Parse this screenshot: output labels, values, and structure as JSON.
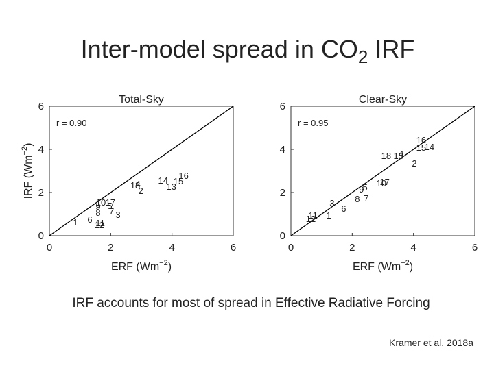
{
  "title": {
    "text": "Inter-model spread in CO",
    "subscript": "2",
    "suffix": " IRF"
  },
  "chart_data": [
    {
      "type": "scatter",
      "title": "Total-Sky",
      "annotation": "r = 0.90",
      "xlabel": {
        "text": "ERF (Wm",
        "superscript": "−2",
        "suffix": ")"
      },
      "ylabel": {
        "text": "IRF (Wm",
        "superscript": "−2",
        "suffix": ")"
      },
      "labels": [
        "1",
        "6",
        "11",
        "12",
        "3",
        "7",
        "5",
        "8",
        "9",
        "10",
        "17",
        "18",
        "4",
        "2",
        "14",
        "15",
        "13",
        "16"
      ],
      "x": [
        0.85,
        1.32,
        1.66,
        1.63,
        2.24,
        2.03,
        1.97,
        1.59,
        1.59,
        1.68,
        1.99,
        2.8,
        2.89,
        2.98,
        3.71,
        4.21,
        3.98,
        4.38
      ],
      "y": [
        0.63,
        0.76,
        0.6,
        0.51,
        0.98,
        1.14,
        1.4,
        1.08,
        1.37,
        1.56,
        1.56,
        2.35,
        2.41,
        2.1,
        2.57,
        2.54,
        2.29,
        2.79
      ],
      "xlim": [
        0,
        6
      ],
      "ylim": [
        0,
        6
      ],
      "xticks": [
        0,
        2,
        4,
        6
      ],
      "yticks": [
        0,
        2,
        4,
        6
      ],
      "identity_line": true,
      "color": "#222222"
    },
    {
      "type": "scatter",
      "title": "Clear-Sky",
      "annotation": "r = 0.95",
      "xlabel": {
        "text": "ERF (Wm",
        "superscript": "−2",
        "suffix": ")"
      },
      "labels": [
        "11",
        "12",
        "1",
        "3",
        "6",
        "8",
        "7",
        "9",
        "5",
        "10",
        "17",
        "18",
        "13",
        "4",
        "2",
        "15",
        "16",
        "14"
      ],
      "x": [
        0.72,
        0.65,
        1.23,
        1.34,
        1.72,
        2.17,
        2.46,
        2.3,
        2.42,
        2.95,
        3.06,
        3.11,
        3.51,
        3.6,
        4.03,
        4.25,
        4.25,
        4.52
      ],
      "y": [
        0.95,
        0.79,
        0.95,
        1.52,
        1.27,
        1.71,
        1.75,
        2.16,
        2.25,
        2.44,
        2.51,
        3.71,
        3.71,
        3.81,
        3.37,
        4.1,
        4.44,
        4.13
      ],
      "xlim": [
        0,
        6
      ],
      "ylim": [
        0,
        6
      ],
      "xticks": [
        0,
        2,
        4,
        6
      ],
      "yticks": [
        0,
        2,
        4,
        6
      ],
      "identity_line": true,
      "color": "#222222"
    }
  ],
  "caption": "IRF accounts for most of spread in Effective Radiative Forcing",
  "credit": "Kramer et al. 2018a"
}
